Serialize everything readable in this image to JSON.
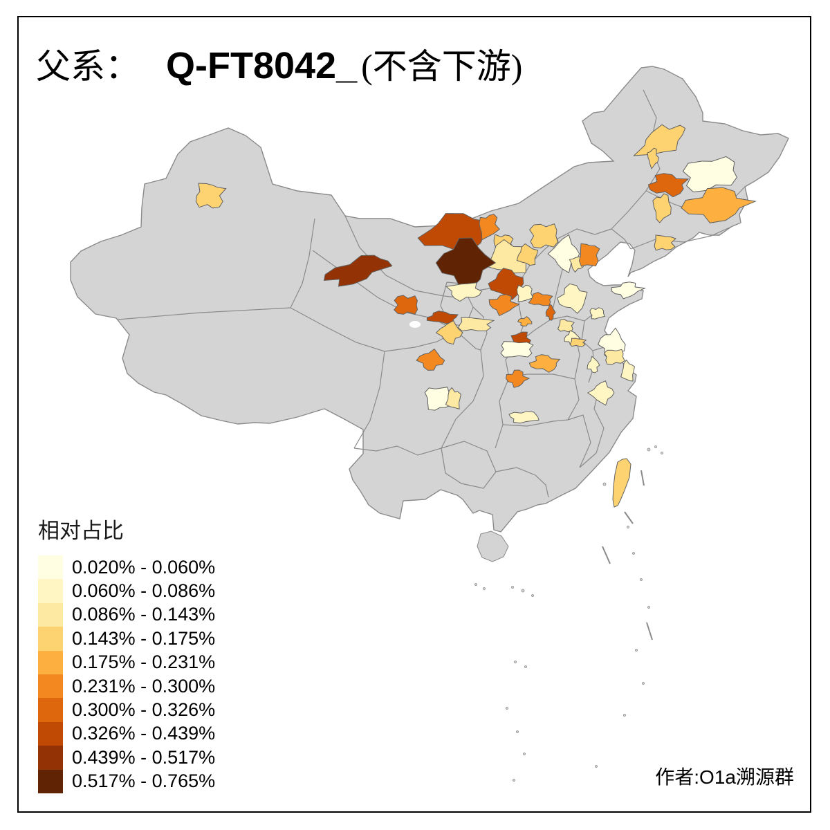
{
  "title": {
    "prefix": "父系：",
    "haplogroup": "Q-FT8042_",
    "suffix": "(不含下游)"
  },
  "legend": {
    "title": "相对占比",
    "classes": [
      {
        "label": "0.020% - 0.060%",
        "color": "#FFFEE3"
      },
      {
        "label": "0.060% - 0.086%",
        "color": "#FFF6C3"
      },
      {
        "label": "0.086% - 0.143%",
        "color": "#FEE9A2"
      },
      {
        "label": "0.143% - 0.175%",
        "color": "#FDD271"
      },
      {
        "label": "0.175% - 0.231%",
        "color": "#FDB040"
      },
      {
        "label": "0.231% - 0.300%",
        "color": "#F38821"
      },
      {
        "label": "0.300% - 0.326%",
        "color": "#DE670E"
      },
      {
        "label": "0.326% - 0.439%",
        "color": "#C04A03"
      },
      {
        "label": "0.439% - 0.517%",
        "color": "#933305"
      },
      {
        "label": "0.517% - 0.765%",
        "color": "#602405"
      }
    ]
  },
  "credit": "作者:O1a溯源群",
  "map": {
    "land_color": "#D4D4D4",
    "province_border_color": "#8A8A8A",
    "region_border_color": "#606060",
    "sea_color": "#FFFFFF",
    "regions": [
      {
        "name": "xinjiang-bole",
        "cls": 4,
        "shape": [
          303,
          283,
          20,
          18,
          0
        ]
      },
      {
        "name": "bayannur",
        "cls": 8,
        "shape": [
          662,
          336,
          50,
          25,
          -8
        ]
      },
      {
        "name": "wuhai-strip",
        "cls": 6,
        "shape": [
          706,
          327,
          13,
          17,
          15
        ]
      },
      {
        "name": "baotou",
        "cls": 4,
        "shape": [
          727,
          352,
          14,
          13,
          0
        ]
      },
      {
        "name": "hohhot-ulanqab",
        "cls": 3,
        "shape": [
          737,
          373,
          30,
          22,
          0
        ]
      },
      {
        "name": "ordos",
        "cls": 10,
        "shape": [
          673,
          380,
          36,
          32,
          0
        ]
      },
      {
        "name": "hexi-corridor",
        "cls": 9,
        "shape": [
          516,
          391,
          45,
          16,
          -17
        ]
      },
      {
        "name": "lanzhou-area",
        "cls": 7,
        "shape": [
          587,
          441,
          17,
          14,
          0
        ]
      },
      {
        "name": "xining-area",
        "cls": 8,
        "shape": [
          640,
          459,
          21,
          8,
          0
        ]
      },
      {
        "name": "gansu-south",
        "cls": 4,
        "shape": [
          651,
          481,
          16,
          14,
          0
        ]
      },
      {
        "name": "ordos-south-pale",
        "cls": 2,
        "shape": [
          671,
          421,
          22,
          12,
          0
        ]
      },
      {
        "name": "guyuan-pale",
        "cls": 3,
        "shape": [
          686,
          469,
          24,
          10,
          0
        ]
      },
      {
        "name": "yulin",
        "cls": 8,
        "shape": [
          734,
          410,
          24,
          19,
          0
        ]
      },
      {
        "name": "yanan",
        "cls": 6,
        "shape": [
          727,
          440,
          18,
          13,
          0
        ]
      },
      {
        "name": "luliang-pale",
        "cls": 2,
        "shape": [
          758,
          424,
          11,
          12,
          0
        ]
      },
      {
        "name": "changzhi",
        "cls": 6,
        "shape": [
          782,
          433,
          16,
          9,
          0
        ]
      },
      {
        "name": "jincheng",
        "cls": 7,
        "shape": [
          796,
          452,
          6,
          10,
          0
        ]
      },
      {
        "name": "sanmenxia",
        "cls": 5,
        "shape": [
          759,
          465,
          9,
          6,
          0
        ]
      },
      {
        "name": "zhangjiakou",
        "cls": 4,
        "shape": [
          786,
          341,
          20,
          18,
          0
        ]
      },
      {
        "name": "datong",
        "cls": 4,
        "shape": [
          763,
          369,
          14,
          14,
          0
        ]
      },
      {
        "name": "beijing-area",
        "cls": 1,
        "shape": [
          817,
          367,
          19,
          22,
          0
        ]
      },
      {
        "name": "langfang",
        "cls": 3,
        "shape": [
          834,
          381,
          9,
          10,
          0
        ]
      },
      {
        "name": "tangshan",
        "cls": 6,
        "shape": [
          851,
          369,
          14,
          17,
          0
        ]
      },
      {
        "name": "shijiazhuang-pale",
        "cls": 2,
        "shape": [
          829,
          431,
          20,
          18,
          0
        ]
      },
      {
        "name": "yantai-cream",
        "cls": 1,
        "shape": [
          906,
          419,
          20,
          10,
          -5
        ]
      },
      {
        "name": "jinan-pale",
        "cls": 2,
        "shape": [
          863,
          453,
          10,
          8,
          0
        ]
      },
      {
        "name": "shandong-sw-a",
        "cls": 3,
        "shape": [
          818,
          471,
          11,
          9,
          0
        ]
      },
      {
        "name": "shandong-sw-b",
        "cls": 2,
        "shape": [
          827,
          489,
          10,
          9,
          0
        ]
      },
      {
        "name": "jiangsu-north",
        "cls": 1,
        "shape": [
          885,
          498,
          17,
          19,
          0
        ]
      },
      {
        "name": "jiangsu-mid",
        "cls": 3,
        "shape": [
          888,
          516,
          14,
          11,
          0
        ]
      },
      {
        "name": "nantong",
        "cls": 2,
        "shape": [
          908,
          537,
          9,
          14,
          0
        ]
      },
      {
        "name": "zhejiang-north",
        "cls": 2,
        "shape": [
          871,
          568,
          16,
          14,
          0
        ]
      },
      {
        "name": "guanzhong",
        "cls": 8,
        "shape": [
          753,
          492,
          12,
          12,
          0
        ]
      },
      {
        "name": "shangluo-pale",
        "cls": 1,
        "shape": [
          746,
          505,
          23,
          12,
          0
        ]
      },
      {
        "name": "nanyang",
        "cls": 5,
        "shape": [
          788,
          525,
          20,
          11,
          0
        ]
      },
      {
        "name": "xiangyang",
        "cls": 6,
        "shape": [
          747,
          547,
          14,
          11,
          0
        ]
      },
      {
        "name": "hubei-south",
        "cls": 2,
        "shape": [
          757,
          603,
          20,
          8,
          0
        ]
      },
      {
        "name": "huaibei",
        "cls": 4,
        "shape": [
          835,
          495,
          11,
          6,
          0
        ]
      },
      {
        "name": "anhui-pale",
        "cls": 2,
        "shape": [
          858,
          528,
          8,
          10,
          0
        ]
      },
      {
        "name": "mianyang",
        "cls": 6,
        "shape": [
          623,
          521,
          17,
          13,
          0
        ]
      },
      {
        "name": "chengdu-pale",
        "cls": 1,
        "shape": [
          633,
          576,
          18,
          17,
          0
        ]
      },
      {
        "name": "suining",
        "cls": 3,
        "shape": [
          656,
          577,
          10,
          14,
          0
        ]
      },
      {
        "name": "heilongjiang-nw",
        "cls": 4,
        "shape": [
          958,
          203,
          36,
          17,
          -28
        ]
      },
      {
        "name": "nenjiang-strip",
        "cls": 4,
        "shape": [
          944,
          228,
          7,
          13,
          0
        ]
      },
      {
        "name": "heilongjiang-ne",
        "cls": 1,
        "shape": [
          1026,
          252,
          38,
          23,
          -10
        ]
      },
      {
        "name": "harbin",
        "cls": 7,
        "shape": [
          966,
          267,
          26,
          15,
          0
        ]
      },
      {
        "name": "jilin-east",
        "cls": 5,
        "shape": [
          1036,
          296,
          45,
          22,
          -5
        ]
      },
      {
        "name": "changchun-west",
        "cls": 4,
        "shape": [
          957,
          300,
          12,
          19,
          0
        ]
      },
      {
        "name": "liaoning-north",
        "cls": 4,
        "shape": [
          960,
          351,
          15,
          11,
          0
        ]
      },
      {
        "name": "taiwan",
        "cls": 4,
        "poly": "893,668 900,664 906,663 912,671 910,690 903,709 897,723 893,731 888,733 886,722 887,703 889,686"
      }
    ]
  }
}
